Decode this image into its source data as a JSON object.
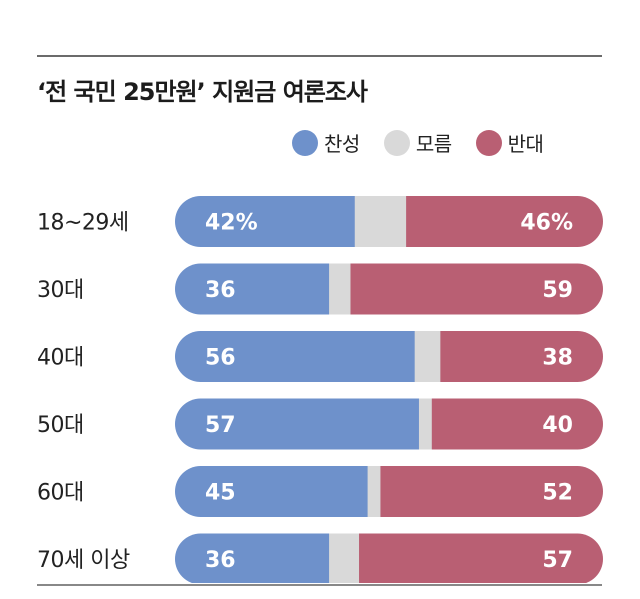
{
  "title": "‘전 국민 25만원’ 지원금 여론조사",
  "legend": [
    {
      "label": "찬성",
      "color": "#6e91cb"
    },
    {
      "label": "모름",
      "color": "#d9d9d9"
    },
    {
      "label": "반대",
      "color": "#b95f73"
    }
  ],
  "chart_data": {
    "type": "bar",
    "orientation": "horizontal",
    "stacked": true,
    "categories": [
      "18~29세",
      "30대",
      "40대",
      "50대",
      "60대",
      "70세 이상"
    ],
    "series": [
      {
        "name": "찬성",
        "values": [
          42,
          36,
          56,
          57,
          45,
          36
        ],
        "color": "#6e91cb"
      },
      {
        "name": "모름",
        "values": [
          12,
          5,
          6,
          3,
          3,
          7
        ],
        "color": "#d9d9d9"
      },
      {
        "name": "반대",
        "values": [
          46,
          59,
          38,
          40,
          52,
          57
        ],
        "color": "#b95f73"
      }
    ],
    "value_labels": {
      "찬성": [
        "42%",
        "36",
        "56",
        "57",
        "45",
        "36"
      ],
      "반대": [
        "46%",
        "59",
        "38",
        "40",
        "52",
        "57"
      ]
    },
    "xlim": [
      0,
      100
    ],
    "legend_position": "top-right"
  }
}
